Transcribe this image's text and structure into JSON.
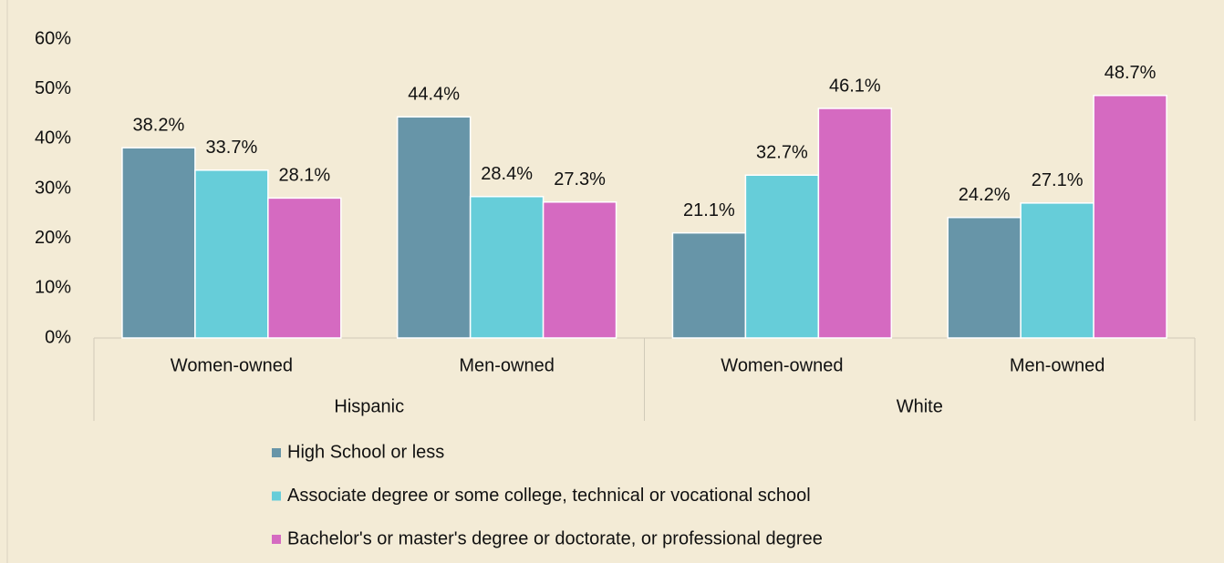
{
  "chart_data": {
    "type": "bar",
    "groups": [
      {
        "name": "Hispanic",
        "categories": [
          "Women-owned",
          "Men-owned"
        ]
      },
      {
        "name": "White",
        "categories": [
          "Women-owned",
          "Men-owned"
        ]
      }
    ],
    "series": [
      {
        "name": "High School or less",
        "color": "#6795a8",
        "values": [
          38.2,
          44.4,
          21.1,
          24.2
        ],
        "value_labels": [
          "38.2%",
          "44.4%",
          "21.1%",
          "24.2%"
        ]
      },
      {
        "name": "Associate degree or some college, technical or vocational school",
        "color": "#66cdd9",
        "values": [
          33.7,
          28.4,
          32.7,
          27.1
        ],
        "value_labels": [
          "33.7%",
          "28.4%",
          "32.7%",
          "27.1%"
        ]
      },
      {
        "name": "Bachelor's or master's degree or doctorate, or professional degree",
        "color": "#d56ac1",
        "values": [
          28.1,
          27.3,
          46.1,
          48.7
        ],
        "value_labels": [
          "28.1%",
          "27.3%",
          "46.1%",
          "48.7%"
        ]
      }
    ],
    "ylim": [
      0,
      60
    ],
    "yticks": [
      {
        "value": 0,
        "label": "0%"
      },
      {
        "value": 10,
        "label": "10%"
      },
      {
        "value": 20,
        "label": "20%"
      },
      {
        "value": 30,
        "label": "30%"
      },
      {
        "value": 40,
        "label": "40%"
      },
      {
        "value": 50,
        "label": "50%"
      },
      {
        "value": 60,
        "label": "60%"
      }
    ],
    "grid": false,
    "legend": "bottom"
  }
}
